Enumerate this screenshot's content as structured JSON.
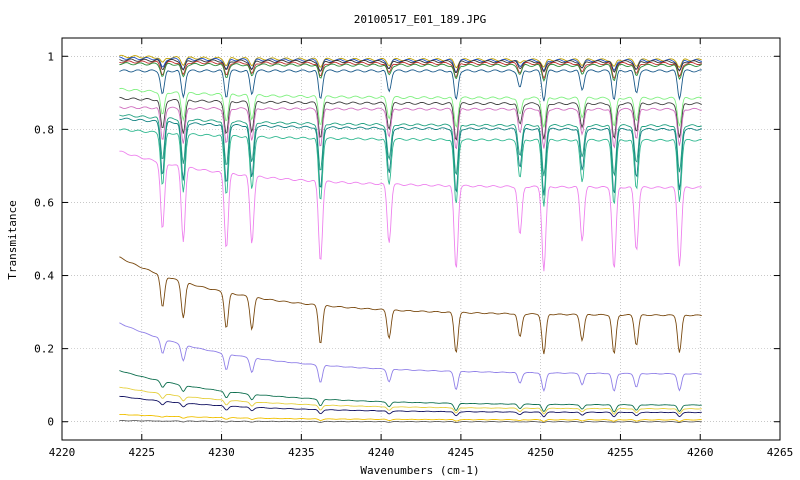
{
  "chart_data": {
    "type": "line",
    "title": "20100517_E01_189.JPG",
    "xlabel": "Wavenumbers (cm-1)",
    "ylabel": "Transmitance",
    "xlim": [
      4220,
      4265
    ],
    "ylim": [
      -0.05,
      1.05
    ],
    "x_ticks": [
      "4220",
      "4225",
      "4230",
      "4235",
      "4240",
      "4245",
      "4250",
      "4255",
      "4260",
      "4265"
    ],
    "y_ticks": [
      "0",
      "0.2",
      "0.4",
      "0.6",
      "0.8",
      "1"
    ],
    "grid": true,
    "legend": "none",
    "x_range_of_data": [
      4223.6,
      4260.1
    ],
    "absorption_lines": [
      4226.3,
      4227.6,
      4230.3,
      4231.9,
      4236.2,
      4240.5,
      4244.7,
      4248.7,
      4250.2,
      4252.6,
      4254.6,
      4256.0,
      4258.7
    ],
    "series": [
      {
        "color": "#c0a000",
        "start": 1.0,
        "end": 0.99,
        "depth": 0.02
      },
      {
        "color": "#1f4fbf",
        "start": 0.995,
        "end": 0.988,
        "depth": 0.03
      },
      {
        "color": "#333333",
        "start": 0.99,
        "end": 0.985,
        "depth": 0.03
      },
      {
        "color": "#c03030",
        "start": 0.985,
        "end": 0.98,
        "depth": 0.04
      },
      {
        "color": "#2a8f3a",
        "start": 0.98,
        "end": 0.975,
        "depth": 0.04
      },
      {
        "color": "#1a5a8a",
        "start": 0.96,
        "end": 0.96,
        "depth": 0.08
      },
      {
        "color": "#80f080",
        "start": 0.91,
        "end": 0.885,
        "depth": 0.08
      },
      {
        "color": "#404040",
        "start": 0.885,
        "end": 0.87,
        "depth": 0.1
      },
      {
        "color": "#d070c0",
        "start": 0.86,
        "end": 0.855,
        "depth": 0.11
      },
      {
        "color": "#20a080",
        "start": 0.84,
        "end": 0.81,
        "depth": 0.14
      },
      {
        "color": "#108080",
        "start": 0.83,
        "end": 0.8,
        "depth": 0.18
      },
      {
        "color": "#30b890",
        "start": 0.8,
        "end": 0.77,
        "depth": 0.18
      },
      {
        "color": "#ee82ee",
        "start": 0.74,
        "end": 0.64,
        "depth": 0.23
      },
      {
        "color": "#7a4a10",
        "start": 0.45,
        "end": 0.29,
        "depth": 0.11
      },
      {
        "color": "#9080e8",
        "start": 0.27,
        "end": 0.13,
        "depth": 0.05
      },
      {
        "color": "#107050",
        "start": 0.14,
        "end": 0.045,
        "depth": 0.02
      },
      {
        "color": "#e6d040",
        "start": 0.095,
        "end": 0.035,
        "depth": 0.015
      },
      {
        "color": "#101060",
        "start": 0.07,
        "end": 0.025,
        "depth": 0.012
      },
      {
        "color": "#f0c000",
        "start": 0.02,
        "end": 0.005,
        "depth": 0.004
      },
      {
        "color": "#606060",
        "start": 0.003,
        "end": 0.0,
        "depth": 0.002
      }
    ]
  }
}
